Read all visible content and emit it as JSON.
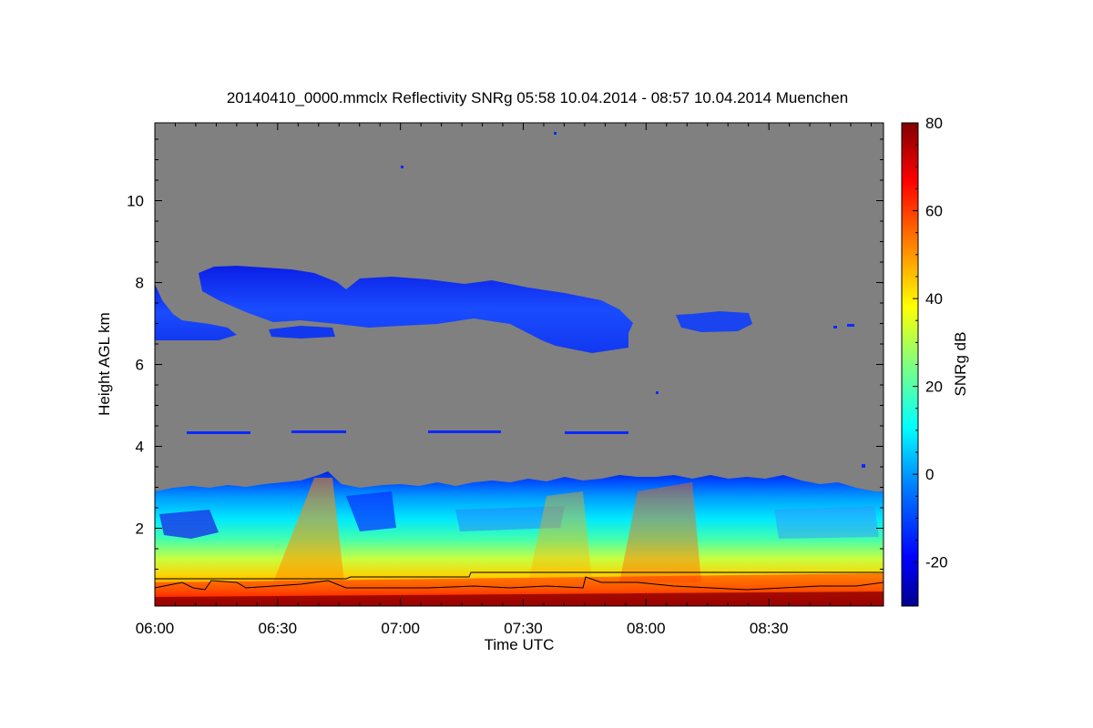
{
  "chart_data": {
    "type": "heatmap",
    "title": "20140410_0000.mmclx Reflectivity SNRg   05:58 10.04.2014 - 08:57 10.04.2014 Muenchen",
    "xlabel": "Time UTC",
    "ylabel": "Height AGL km",
    "colorbar_label": "SNRg dB",
    "x_ticks": [
      "06:00",
      "06:30",
      "07:00",
      "07:30",
      "08:00",
      "08:30"
    ],
    "x_tick_values_min": [
      0,
      30,
      60,
      90,
      120,
      150
    ],
    "xlim_min": [
      0,
      178
    ],
    "y_ticks": [
      "2",
      "4",
      "6",
      "8",
      "10"
    ],
    "y_tick_values": [
      2,
      4,
      6,
      8,
      10
    ],
    "ylim": [
      0.1,
      11.9
    ],
    "colorbar_ticks": [
      "-20",
      "0",
      "20",
      "40",
      "60",
      "80"
    ],
    "colorbar_tick_values": [
      -20,
      0,
      20,
      40,
      60,
      80
    ],
    "colorbar_range": [
      -30,
      80
    ],
    "background_color": "#808080",
    "colormap": [
      "#00008f",
      "#0000ff",
      "#0080ff",
      "#00ffff",
      "#80ff80",
      "#ffff00",
      "#ff8000",
      "#ff0000",
      "#800000"
    ],
    "features": {
      "boundary_layer_top_km": 3.1,
      "upper_cloud_layer_km": [
        6.5,
        8.4
      ],
      "upper_cloud_time_min": [
        0,
        148
      ],
      "upper_cloud_snr_db": -15,
      "near_surface_snr_db": 70
    }
  }
}
